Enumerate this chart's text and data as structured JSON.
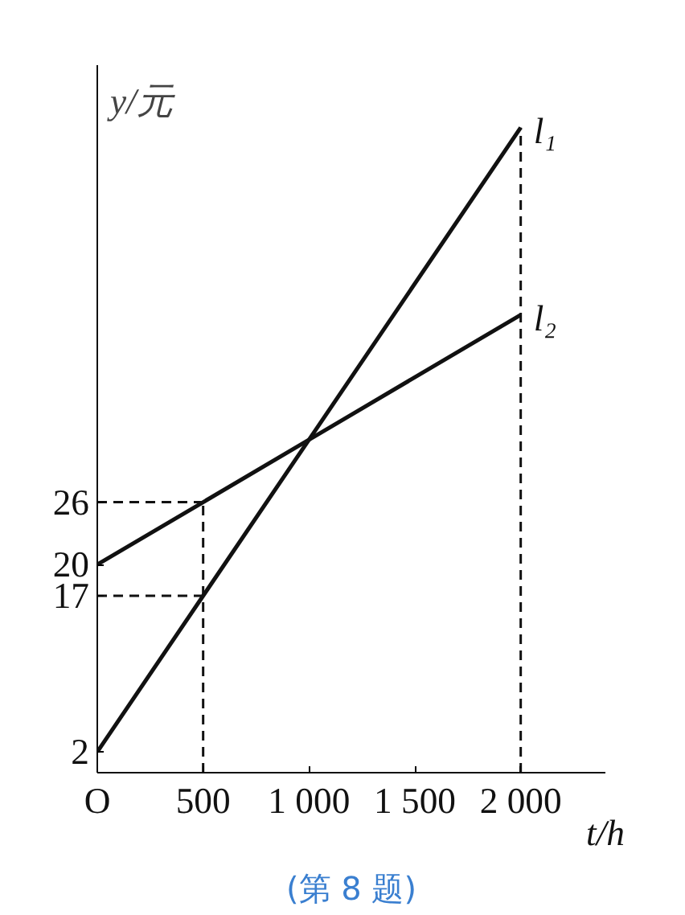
{
  "chart_data": {
    "type": "line",
    "xlabel": "t/h",
    "ylabel": "y/元",
    "x": [
      0,
      500,
      1000,
      2000
    ],
    "series": [
      {
        "name": "l₁",
        "color": "#111111",
        "values": [
          2,
          17,
          32,
          62
        ]
      },
      {
        "name": "l₂",
        "color": "#111111",
        "values": [
          20,
          26,
          32,
          44
        ]
      }
    ],
    "xlim": [
      0,
      2400
    ],
    "ylim": [
      0,
      68
    ],
    "xticks": [
      {
        "value": 0,
        "label": "O"
      },
      500,
      {
        "value": 1000,
        "label": "1 000"
      },
      {
        "value": 1500,
        "label": "1 500"
      },
      {
        "value": 2000,
        "label": "2 000"
      }
    ],
    "yticks": [
      2,
      17,
      20,
      26
    ],
    "ref_lines": [
      {
        "axis": "x",
        "value": 500,
        "color": "#111111",
        "line_style": "dashed"
      },
      {
        "axis": "y",
        "value": 26,
        "color": "#111111",
        "line_style": "dashed"
      },
      {
        "axis": "y",
        "value": 17,
        "color": "#111111",
        "line_style": "dashed"
      },
      {
        "axis": "x",
        "value": 2000,
        "color": "#111111",
        "line_style": "dashed"
      }
    ],
    "annotations": [
      "(第 8 题)"
    ],
    "grid": false,
    "marker": "none",
    "line_style": "solid"
  }
}
